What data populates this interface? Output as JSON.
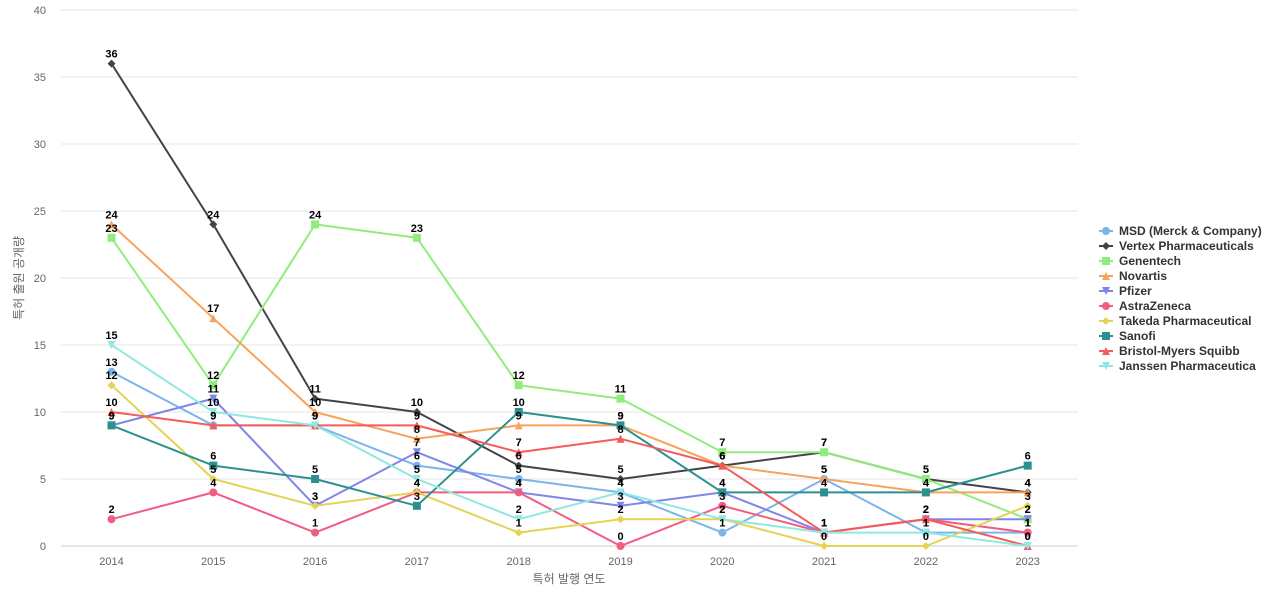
{
  "chart_data": {
    "type": "line",
    "title": "",
    "xlabel": "특허 발행 연도",
    "ylabel": "특허 출원 공개량",
    "ylim": [
      0,
      40
    ],
    "yticks": [
      0,
      5,
      10,
      15,
      20,
      25,
      30,
      35,
      40
    ],
    "categories": [
      "2014",
      "2015",
      "2016",
      "2017",
      "2018",
      "2019",
      "2020",
      "2021",
      "2022",
      "2023"
    ],
    "grid": true,
    "legend_position": "right",
    "series": [
      {
        "name": "MSD (Merck & Company)",
        "color": "#7cb5ec",
        "marker": "circle",
        "values": [
          13,
          9,
          9,
          6,
          5,
          4,
          1,
          5,
          1,
          1
        ]
      },
      {
        "name": "Vertex Pharmaceuticals",
        "color": "#434348",
        "marker": "diamond",
        "values": [
          36,
          24,
          11,
          10,
          6,
          5,
          6,
          7,
          5,
          4
        ]
      },
      {
        "name": "Genentech",
        "color": "#90ed7d",
        "marker": "square",
        "values": [
          23,
          12,
          24,
          23,
          12,
          11,
          7,
          7,
          5,
          2
        ]
      },
      {
        "name": "Novartis",
        "color": "#f7a35c",
        "marker": "triangle",
        "values": [
          24,
          17,
          10,
          8,
          9,
          9,
          6,
          5,
          4,
          4
        ]
      },
      {
        "name": "Pfizer",
        "color": "#8085e9",
        "marker": "triangle-down",
        "values": [
          9,
          11,
          3,
          7,
          4,
          3,
          4,
          1,
          2,
          2
        ]
      },
      {
        "name": "AstraZeneca",
        "color": "#f15c80",
        "marker": "circle",
        "values": [
          2,
          4,
          1,
          4,
          4,
          0,
          3,
          1,
          2,
          1
        ]
      },
      {
        "name": "Takeda Pharmaceutical",
        "color": "#e4d354",
        "marker": "diamond",
        "values": [
          12,
          5,
          3,
          4,
          1,
          2,
          2,
          0,
          0,
          3
        ]
      },
      {
        "name": "Sanofi",
        "color": "#2b908f",
        "marker": "square",
        "values": [
          9,
          6,
          5,
          3,
          10,
          9,
          4,
          4,
          4,
          6
        ]
      },
      {
        "name": "Bristol-Myers Squibb",
        "color": "#f45b5b",
        "marker": "triangle",
        "values": [
          10,
          9,
          9,
          9,
          7,
          8,
          6,
          1,
          2,
          0
        ]
      },
      {
        "name": "Janssen Pharmaceutica",
        "color": "#91e8e1",
        "marker": "triangle-down",
        "values": [
          15,
          10,
          9,
          5,
          2,
          4,
          2,
          1,
          1,
          0
        ]
      }
    ]
  }
}
